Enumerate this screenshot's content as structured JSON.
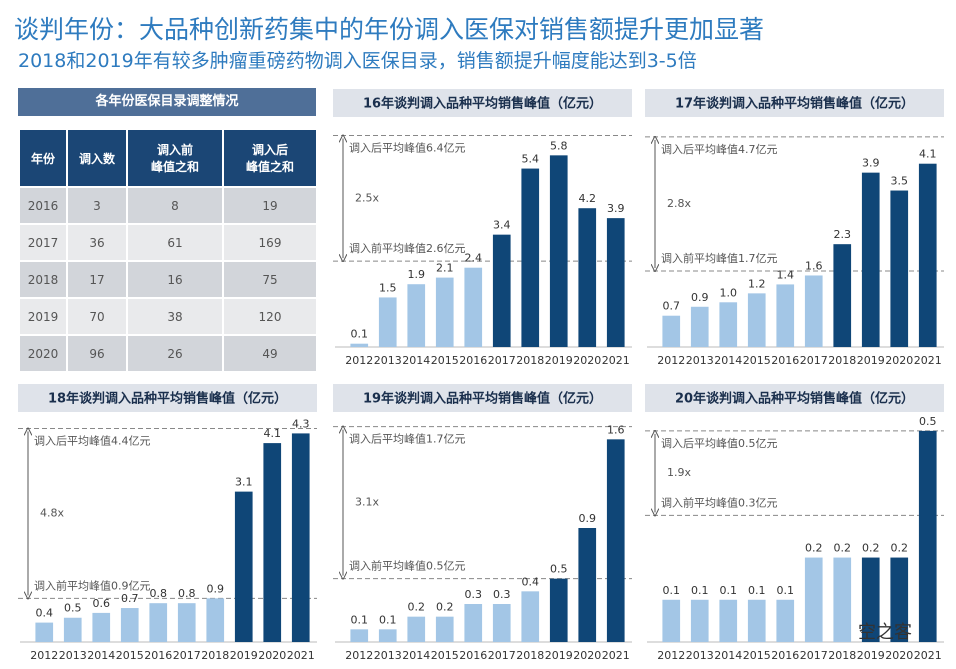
{
  "header": {
    "title": "谈判年份：大品种创新药集中的年份调入医保对销售额提升更加显著",
    "subtitle": "2018和2019年有较多肿瘤重磅药物调入医保目录，销售额提升幅度能达到3-5倍"
  },
  "table": {
    "title": "各年份医保目录调整情况",
    "columns": [
      "年份",
      "调入数",
      "调入前\n峰值之和",
      "调入后\n峰值之和"
    ],
    "rows": [
      [
        2016,
        3,
        8,
        19
      ],
      [
        2017,
        36,
        61,
        169
      ],
      [
        2018,
        17,
        16,
        75
      ],
      [
        2019,
        70,
        38,
        120
      ],
      [
        2020,
        96,
        26,
        49
      ]
    ]
  },
  "chart_data": [
    {
      "type": "bar",
      "title": "16年谈判调入品种平均销售峰值（亿元）",
      "categories": [
        "2012",
        "2013",
        "2014",
        "2015",
        "2016",
        "2017",
        "2018",
        "2019",
        "2020",
        "2021"
      ],
      "values": [
        0.1,
        1.5,
        1.9,
        2.1,
        2.4,
        3.4,
        5.4,
        5.8,
        4.2,
        3.9
      ],
      "value_labels": [
        "0.1",
        "1.5",
        "1.9",
        "2.1",
        "2.4",
        "3.4",
        "5.4",
        "5.8",
        "4.2",
        "3.9"
      ],
      "colors": [
        "#a3c6e6",
        "#a3c6e6",
        "#a3c6e6",
        "#a3c6e6",
        "#a3c6e6",
        "#0f4677",
        "#0f4677",
        "#0f4677",
        "#0f4677",
        "#0f4677"
      ],
      "ylim": [
        0,
        6.9
      ],
      "reference_lines": [
        {
          "value": 6.4,
          "label": "调入后平均峰值6.4亿元"
        },
        {
          "value": 2.6,
          "label": "调入前平均峰值2.6亿元"
        }
      ],
      "ratio_label": "2.5x"
    },
    {
      "type": "bar",
      "title": "17年谈判调入品种平均销售峰值（亿元）",
      "categories": [
        "2012",
        "2013",
        "2014",
        "2015",
        "2016",
        "2017",
        "2018",
        "2019",
        "2020",
        "2021"
      ],
      "values": [
        0.7,
        0.9,
        1.0,
        1.2,
        1.4,
        1.6,
        2.3,
        3.9,
        3.5,
        4.1
      ],
      "value_labels": [
        "0.7",
        "0.9",
        "1.0",
        "1.2",
        "1.4",
        "1.6",
        "2.3",
        "3.9",
        "3.5",
        "4.1"
      ],
      "colors": [
        "#a3c6e6",
        "#a3c6e6",
        "#a3c6e6",
        "#a3c6e6",
        "#a3c6e6",
        "#a3c6e6",
        "#0f4677",
        "#0f4677",
        "#0f4677",
        "#0f4677"
      ],
      "ylim": [
        0,
        5.1
      ],
      "reference_lines": [
        {
          "value": 4.7,
          "label": "调入后平均峰值4.7亿元"
        },
        {
          "value": 1.7,
          "label": "调入前平均峰值1.7亿元"
        }
      ],
      "ratio_label": "2.8x"
    },
    {
      "type": "bar",
      "title": "18年谈判调入品种平均销售峰值（亿元）",
      "categories": [
        "2012",
        "2013",
        "2014",
        "2015",
        "2016",
        "2017",
        "2018",
        "2019",
        "2020",
        "2021"
      ],
      "values": [
        0.4,
        0.5,
        0.6,
        0.7,
        0.8,
        0.8,
        0.9,
        3.1,
        4.1,
        4.3
      ],
      "value_labels": [
        "0.4",
        "0.5",
        "0.6",
        "0.7",
        "0.8",
        "0.8",
        "0.9",
        "3.1",
        "4.1",
        "4.3"
      ],
      "colors": [
        "#a3c6e6",
        "#a3c6e6",
        "#a3c6e6",
        "#a3c6e6",
        "#a3c6e6",
        "#a3c6e6",
        "#a3c6e6",
        "#0f4677",
        "#0f4677",
        "#0f4677"
      ],
      "ylim": [
        0,
        4.7
      ],
      "reference_lines": [
        {
          "value": 4.4,
          "label": "调入后平均峰值4.4亿元"
        },
        {
          "value": 0.9,
          "label": "调入前平均峰值0.9亿元"
        }
      ],
      "ratio_label": "4.8x"
    },
    {
      "type": "bar",
      "title": "19年谈判调入品种平均销售峰值（亿元）",
      "categories": [
        "2012",
        "2013",
        "2014",
        "2015",
        "2016",
        "2017",
        "2018",
        "2019",
        "2020",
        "2021"
      ],
      "values": [
        0.1,
        0.1,
        0.2,
        0.2,
        0.3,
        0.3,
        0.4,
        0.5,
        0.9,
        1.6
      ],
      "value_labels": [
        "0.1",
        "0.1",
        "0.2",
        "0.2",
        "0.3",
        "0.3",
        "0.4",
        "0.5",
        "0.9",
        "1.6"
      ],
      "colors": [
        "#a3c6e6",
        "#a3c6e6",
        "#a3c6e6",
        "#a3c6e6",
        "#a3c6e6",
        "#a3c6e6",
        "#a3c6e6",
        "#0f4677",
        "#0f4677",
        "#0f4677"
      ],
      "ylim": [
        0,
        1.8
      ],
      "reference_lines": [
        {
          "value": 1.7,
          "label": "调入后平均峰值1.7亿元"
        },
        {
          "value": 0.5,
          "label": "调入前平均峰值0.5亿元"
        }
      ],
      "ratio_label": "3.1x"
    },
    {
      "type": "bar",
      "title": "20年谈判调入品种平均销售峰值（亿元）",
      "categories": [
        "2012",
        "2013",
        "2014",
        "2015",
        "2016",
        "2017",
        "2018",
        "2019",
        "2020",
        "2021"
      ],
      "values": [
        0.1,
        0.1,
        0.1,
        0.1,
        0.1,
        0.2,
        0.2,
        0.2,
        0.2,
        0.5
      ],
      "value_labels": [
        "0.1",
        "0.1",
        "0.1",
        "0.1",
        "0.1",
        "0.2",
        "0.2",
        "0.2",
        "0.2",
        "0.5"
      ],
      "colors": [
        "#a3c6e6",
        "#a3c6e6",
        "#a3c6e6",
        "#a3c6e6",
        "#a3c6e6",
        "#a3c6e6",
        "#a3c6e6",
        "#0f4677",
        "#0f4677",
        "#0f4677"
      ],
      "ylim": [
        0,
        0.54
      ],
      "reference_lines": [
        {
          "value": 0.5,
          "label": "调入后平均峰值0.5亿元"
        },
        {
          "value": 0.3,
          "label": "调入前平均峰值0.3亿元"
        }
      ],
      "ratio_label": "1.9x"
    }
  ],
  "watermark": "空之客"
}
